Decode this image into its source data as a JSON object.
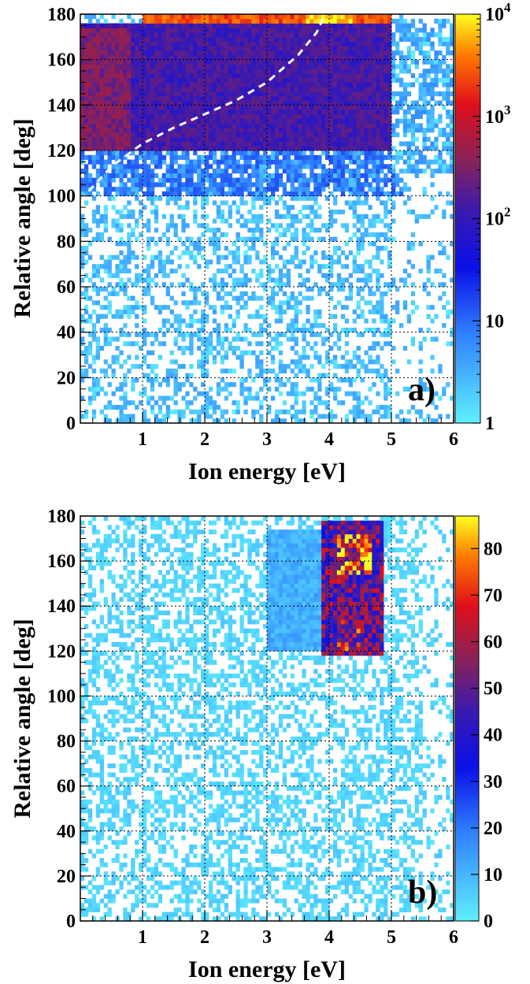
{
  "chart_data": [
    {
      "type": "heatmap",
      "panel_label": "a)",
      "xlabel": "Ion energy [eV]",
      "ylabel": "Relative angle [deg]",
      "xlim": [
        0,
        6
      ],
      "ylim": [
        0,
        180
      ],
      "x_ticks": [
        "1",
        "2",
        "3",
        "4",
        "5",
        "6"
      ],
      "y_ticks": [
        "0",
        "20",
        "40",
        "60",
        "80",
        "100",
        "120",
        "140",
        "160",
        "180"
      ],
      "grid": true,
      "colorbar": {
        "scale": "log",
        "range": [
          1,
          10000
        ],
        "ticks": [
          {
            "value": 1,
            "base": "1",
            "exp": ""
          },
          {
            "value": 10,
            "base": "10",
            "exp": ""
          },
          {
            "value": 100,
            "base": "10",
            "exp": "2"
          },
          {
            "value": 1000,
            "base": "10",
            "exp": "3"
          },
          {
            "value": 10000,
            "base": "10",
            "exp": "4"
          }
        ]
      },
      "regions": [
        {
          "x": [
            0,
            5.0
          ],
          "y": [
            120,
            176
          ],
          "counts": 150
        },
        {
          "x": [
            1.0,
            5.0
          ],
          "y": [
            176,
            180
          ],
          "counts": 3000
        },
        {
          "x": [
            3.6,
            4.4
          ],
          "y": [
            176,
            180
          ],
          "counts": 9000
        },
        {
          "x": [
            0,
            0.8
          ],
          "y": [
            120,
            175
          ],
          "counts": 350
        }
      ],
      "curve": {
        "style": "white-dashed",
        "x": [
          0.0,
          0.5,
          1.0,
          1.5,
          2.0,
          2.5,
          3.0,
          3.5,
          3.8,
          3.9
        ],
        "y": [
          98,
          113,
          123,
          130,
          136,
          142,
          150,
          162,
          172,
          178
        ]
      }
    },
    {
      "type": "heatmap",
      "panel_label": "b)",
      "xlabel": "Ion energy [eV]",
      "ylabel": "Relative angle [deg]",
      "xlim": [
        0,
        6
      ],
      "ylim": [
        0,
        180
      ],
      "x_ticks": [
        "1",
        "2",
        "3",
        "4",
        "5",
        "6"
      ],
      "y_ticks": [
        "0",
        "20",
        "40",
        "60",
        "80",
        "100",
        "120",
        "140",
        "160",
        "180"
      ],
      "grid": true,
      "colorbar": {
        "scale": "linear",
        "range": [
          0,
          87
        ],
        "ticks": [
          {
            "value": 0,
            "label": "0"
          },
          {
            "value": 10,
            "label": "10"
          },
          {
            "value": 20,
            "label": "20"
          },
          {
            "value": 30,
            "label": "30"
          },
          {
            "value": 40,
            "label": "40"
          },
          {
            "value": 50,
            "label": "50"
          },
          {
            "value": 60,
            "label": "60"
          },
          {
            "value": 70,
            "label": "70"
          },
          {
            "value": 80,
            "label": "80"
          }
        ]
      },
      "regions": [
        {
          "x": [
            3.9,
            4.9
          ],
          "y": [
            118,
            178
          ],
          "counts": 55
        },
        {
          "x": [
            4.1,
            4.7
          ],
          "y": [
            155,
            172
          ],
          "counts": 80
        },
        {
          "x": [
            4.1,
            4.5
          ],
          "y": [
            120,
            135
          ],
          "counts": 65
        },
        {
          "x": [
            3.0,
            3.9
          ],
          "y": [
            120,
            175
          ],
          "counts": 12
        }
      ]
    }
  ]
}
